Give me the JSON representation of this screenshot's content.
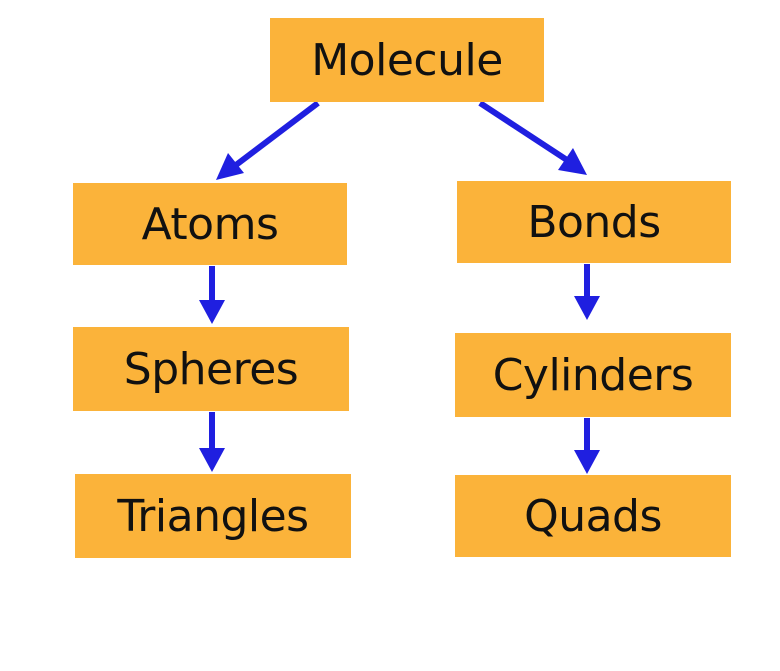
{
  "diagram": {
    "root": {
      "label": "Molecule"
    },
    "left_branch": {
      "level1": "Atoms",
      "level2": "Spheres",
      "level3": "Triangles"
    },
    "right_branch": {
      "level1": "Bonds",
      "level2": "Cylinders",
      "level3": "Quads"
    }
  },
  "colors": {
    "node_fill": "#fbb33a",
    "arrow": "#1f1fe0",
    "background": "#ffffff"
  }
}
